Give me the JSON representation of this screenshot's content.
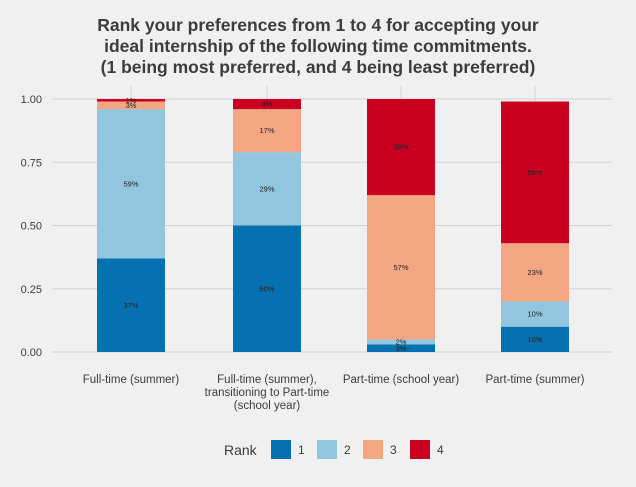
{
  "chart_data": {
    "type": "bar",
    "stacked": true,
    "title_lines": [
      "Rank your preferences from 1 to 4 for accepting your",
      "ideal internship of the following time commitments.",
      "(1 being most preferred, and 4 being least preferred)"
    ],
    "categories": [
      [
        "Full-time (summer)"
      ],
      [
        "Full-time (summer),",
        "transitioning to Part-time",
        "(school year)"
      ],
      [
        "Part-time (school year)"
      ],
      [
        "Part-time (summer)"
      ]
    ],
    "ylim": [
      0,
      1
    ],
    "yticks": [
      0,
      0.25,
      0.5,
      0.75,
      1
    ],
    "ytick_labels": [
      "0.00",
      "0.25",
      "0.50",
      "0.75",
      "1.00"
    ],
    "grid": true,
    "legend": {
      "title": "Rank",
      "position": "bottom"
    },
    "series": [
      {
        "name": "1",
        "color": "#0571b0",
        "values": [
          0.37,
          0.5,
          0.03,
          0.1
        ],
        "labels": [
          "37%",
          "50%",
          "3%",
          "10%"
        ]
      },
      {
        "name": "2",
        "color": "#92c5de",
        "values": [
          0.59,
          0.29,
          0.02,
          0.1
        ],
        "labels": [
          "59%",
          "29%",
          "2%",
          "10%"
        ]
      },
      {
        "name": "3",
        "color": "#f4a582",
        "values": [
          0.03,
          0.17,
          0.57,
          0.23
        ],
        "labels": [
          "3%",
          "17%",
          "57%",
          "23%"
        ]
      },
      {
        "name": "4",
        "color": "#ca0020",
        "values": [
          0.01,
          0.04,
          0.38,
          0.56
        ],
        "labels": [
          "1%",
          "4%",
          "38%",
          "56%"
        ]
      }
    ]
  }
}
